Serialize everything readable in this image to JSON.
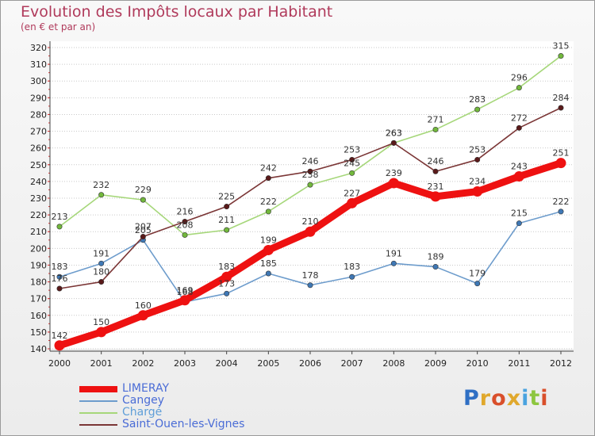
{
  "chart_data": {
    "type": "line",
    "title": "Evolution des Impôts locaux par Habitant",
    "subtitle": "(en € et par an)",
    "xlabel": "",
    "ylabel": "",
    "categories": [
      "2000",
      "2001",
      "2002",
      "2003",
      "2004",
      "2005",
      "2006",
      "2007",
      "2008",
      "2009",
      "2010",
      "2011",
      "2012"
    ],
    "ylim": [
      140,
      320
    ],
    "ytick_step": 10,
    "grid": "horizontal dotted",
    "legend_position": "bottom-left",
    "series": [
      {
        "name": "LIMERAY",
        "color": "#ee1111",
        "marker": "#ee1111",
        "width": "thick",
        "values": [
          142,
          150,
          160,
          169,
          183,
          199,
          210,
          227,
          239,
          231,
          234,
          243,
          251
        ]
      },
      {
        "name": "Cangey",
        "color": "#6d9ccc",
        "marker": "#3f78b5",
        "width": "thin",
        "values": [
          183,
          191,
          205,
          168,
          173,
          185,
          178,
          183,
          191,
          189,
          179,
          215,
          222
        ]
      },
      {
        "name": "Chargé",
        "color": "#a6d77a",
        "marker": "#72b83c",
        "width": "thin",
        "values": [
          213,
          232,
          229,
          208,
          211,
          222,
          238,
          245,
          263,
          271,
          283,
          296,
          315
        ]
      },
      {
        "name": "Saint-Ouen-les-Vignes",
        "color": "#7b3636",
        "marker": "#5a1a1a",
        "width": "thin",
        "values": [
          176,
          180,
          207,
          216,
          225,
          242,
          246,
          253,
          263,
          246,
          253,
          272,
          284
        ]
      }
    ]
  },
  "branding": {
    "logo_text": [
      "P",
      "r",
      "o",
      "x",
      "i",
      "t",
      "i"
    ]
  }
}
